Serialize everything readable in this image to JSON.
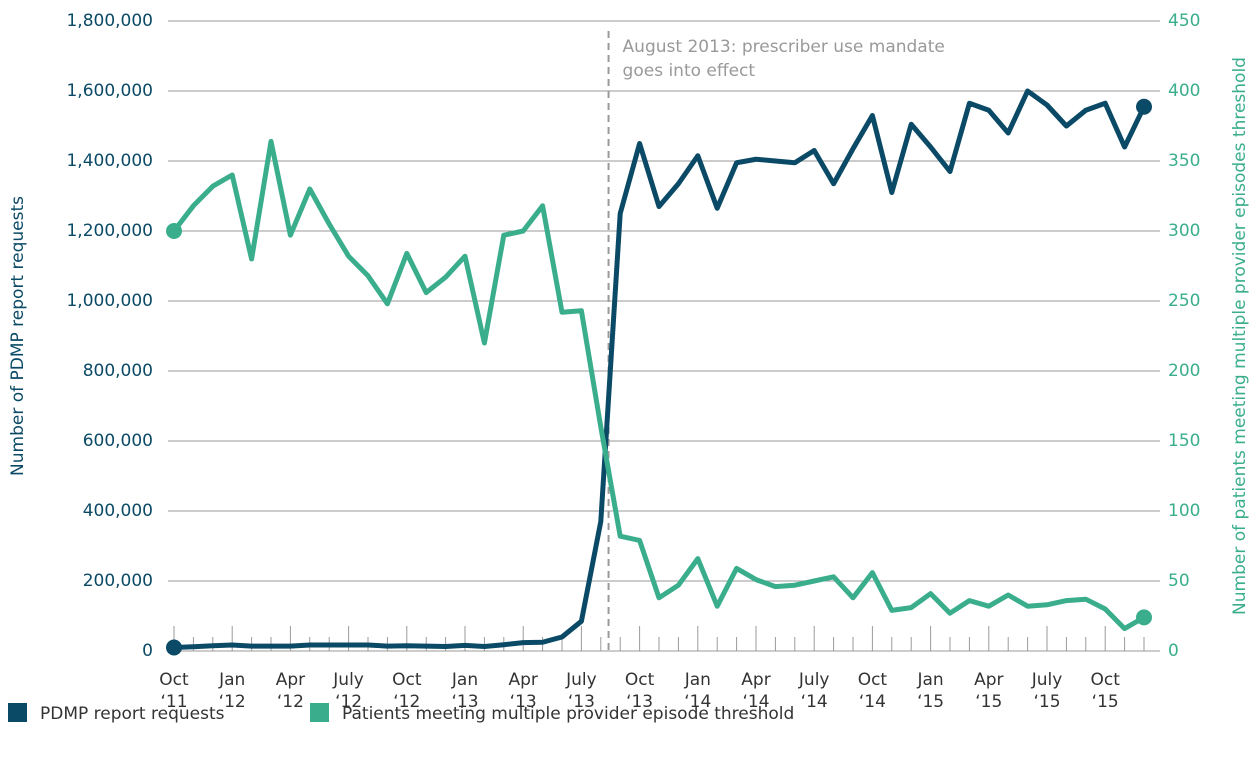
{
  "chart_data": {
    "type": "line",
    "y_label": "Number of PDMP report requests",
    "y2_label": "Number of patients meeting multiple provider episodes threshold",
    "annotation": {
      "text": "August 2013: prescriber use mandate\ngoes into effect"
    },
    "categories": [
      "Oct\n‘11",
      null,
      null,
      "Jan\n‘12",
      null,
      null,
      "Apr\n‘12",
      null,
      null,
      "July\n‘12",
      null,
      null,
      "Oct\n‘12",
      null,
      null,
      "Jan\n‘13",
      null,
      null,
      "Apr\n‘13",
      null,
      null,
      "July\n‘13",
      null,
      null,
      "Oct\n‘13",
      null,
      null,
      "Jan\n‘14",
      null,
      null,
      "Apr\n‘14",
      null,
      null,
      "July\n‘14",
      null,
      null,
      "Oct\n‘14",
      null,
      null,
      "Jan\n‘15",
      null,
      null,
      "Apr\n‘15",
      null,
      null,
      "July\n‘15",
      null,
      null,
      "Oct\n‘15",
      null,
      null
    ],
    "series": [
      {
        "name": "PDMP report requests",
        "color": "#0b4a66",
        "values": [
          10000,
          12000,
          15000,
          17000,
          14000,
          14000,
          14000,
          17000,
          17000,
          17000,
          17000,
          14000,
          15000,
          14000,
          13000,
          16000,
          13000,
          18000,
          24000,
          25000,
          40000,
          85000,
          370000,
          1250000,
          1450000,
          1270000,
          1335000,
          1415000,
          1265000,
          1395000,
          1405000,
          1400000,
          1395000,
          1430000,
          1335000,
          1435000,
          1530000,
          1310000,
          1505000,
          1440000,
          1370000,
          1565000,
          1545000,
          1480000,
          1600000,
          1560000,
          1500000,
          1545000,
          1565000,
          1440000,
          1555000
        ]
      },
      {
        "name": "Patients meeting multiple provider episode threshold",
        "color": "#3aae8c",
        "axis": "y2",
        "values": [
          300,
          318,
          332,
          340,
          280,
          364,
          297,
          330,
          305,
          282,
          268,
          248,
          284,
          256,
          267,
          282,
          220,
          297,
          300,
          318,
          242,
          243,
          160,
          82,
          79,
          38,
          47,
          66,
          32,
          59,
          51,
          46,
          47,
          50,
          53,
          38,
          56,
          29,
          31,
          41,
          27,
          36,
          32,
          40,
          32,
          33,
          36,
          37,
          30,
          16,
          24
        ]
      }
    ],
    "ylim": [
      0,
      1800000
    ],
    "yticks": [
      0,
      {
        "value": 200000,
        "label": "200,000"
      },
      {
        "value": 400000,
        "label": "400,000"
      },
      {
        "value": 600000,
        "label": "600,000"
      },
      {
        "value": 800000,
        "label": "800,000"
      },
      {
        "value": 1000000,
        "label": "1,000,000"
      },
      {
        "value": 1200000,
        "label": "1,200,000"
      },
      {
        "value": 1400000,
        "label": "1,400,000"
      },
      {
        "value": 1600000,
        "label": "1,600,000"
      },
      {
        "value": 1800000,
        "label": "1,800,000"
      }
    ],
    "y2lim": [
      0,
      450
    ],
    "y2ticks": [
      0,
      50,
      100,
      150,
      200,
      250,
      300,
      350,
      400,
      450
    ],
    "grid": true
  }
}
